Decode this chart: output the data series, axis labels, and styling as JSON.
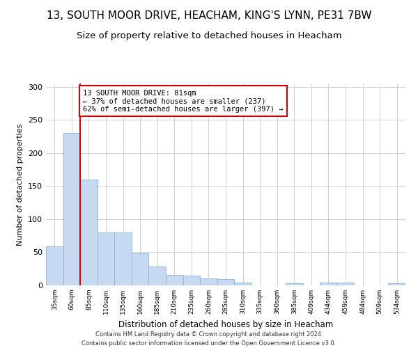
{
  "title": "13, SOUTH MOOR DRIVE, HEACHAM, KING'S LYNN, PE31 7BW",
  "subtitle": "Size of property relative to detached houses in Heacham",
  "xlabel": "Distribution of detached houses by size in Heacham",
  "ylabel": "Number of detached properties",
  "bar_labels": [
    "35sqm",
    "60sqm",
    "85sqm",
    "110sqm",
    "135sqm",
    "160sqm",
    "185sqm",
    "210sqm",
    "235sqm",
    "260sqm",
    "285sqm",
    "310sqm",
    "335sqm",
    "360sqm",
    "385sqm",
    "409sqm",
    "434sqm",
    "459sqm",
    "484sqm",
    "509sqm",
    "534sqm"
  ],
  "bar_values": [
    59,
    230,
    160,
    80,
    80,
    48,
    28,
    16,
    15,
    10,
    9,
    4,
    0,
    0,
    3,
    0,
    4,
    4,
    0,
    0,
    3
  ],
  "bar_color": "#c6d9f0",
  "bar_edge_color": "#8ab4d8",
  "vline_color": "#cc0000",
  "annotation_text": "13 SOUTH MOOR DRIVE: 81sqm\n← 37% of detached houses are smaller (237)\n62% of semi-detached houses are larger (397) →",
  "annotation_box_color": "#ffffff",
  "annotation_box_edge": "#cc0000",
  "ylim": [
    0,
    305
  ],
  "grid_color": "#d0d0d0",
  "footer1": "Contains HM Land Registry data © Crown copyright and database right 2024.",
  "footer2": "Contains public sector information licensed under the Open Government Licence v3.0.",
  "background_color": "#ffffff",
  "title_fontsize": 11,
  "subtitle_fontsize": 9.5,
  "ylabel_fontsize": 8,
  "xlabel_fontsize": 8.5,
  "annotation_fontsize": 7.5
}
